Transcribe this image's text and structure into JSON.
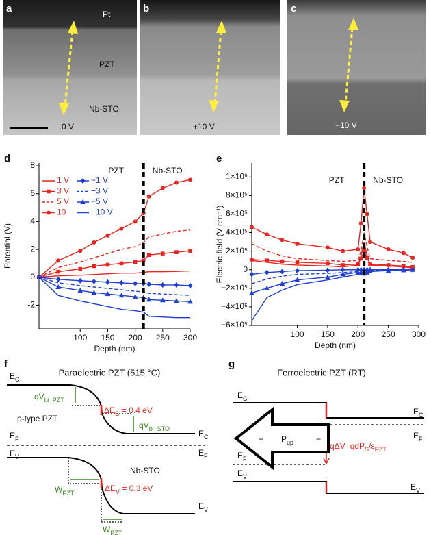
{
  "image_panels": [
    {
      "letter": "a",
      "labels": [
        "Pt",
        "PZT",
        "Nb-STO"
      ],
      "voltage": "0 V"
    },
    {
      "letter": "b",
      "voltage": "+10 V"
    },
    {
      "letter": "c",
      "voltage": "−10 V"
    }
  ],
  "chart_data": [
    {
      "type": "line",
      "letter": "d",
      "x_label": "Depth (nm)",
      "y_label": "Potential (V)",
      "annotations": [
        "PZT",
        "Nb-STO"
      ],
      "boundary": 215,
      "x": [
        25,
        60,
        100,
        125,
        150,
        175,
        200,
        215,
        225,
        250,
        275,
        300
      ],
      "xlim": [
        25,
        300
      ],
      "xticks": [
        100,
        150,
        200,
        250,
        300
      ],
      "ylim": [
        -3.7,
        8.2
      ],
      "yticks": [
        -2,
        0,
        2,
        4,
        6,
        8
      ],
      "legend": true,
      "series": [
        {
          "name": "1 V",
          "color": "#e8251f",
          "marker": "none",
          "dash": "solid",
          "values": [
            0,
            0.1,
            0.15,
            0.2,
            0.25,
            0.3,
            0.3,
            0.35,
            0.4,
            0.4,
            0.42,
            0.45
          ]
        },
        {
          "name": "3 V",
          "color": "#e8251f",
          "marker": "square",
          "dash": "solid",
          "values": [
            0,
            0.4,
            0.6,
            0.8,
            0.9,
            1.0,
            1.1,
            1.2,
            1.6,
            1.7,
            1.8,
            1.9
          ]
        },
        {
          "name": "5 V",
          "color": "#e8251f",
          "marker": "none",
          "dash": "dashed",
          "values": [
            0,
            0.7,
            1.1,
            1.4,
            1.7,
            2.0,
            2.2,
            2.5,
            2.9,
            3.1,
            3.3,
            3.4
          ]
        },
        {
          "name": "10",
          "color": "#e8251f",
          "marker": "circle",
          "dash": "solid",
          "values": [
            0,
            1.2,
            1.9,
            2.5,
            3.0,
            3.5,
            4.0,
            4.6,
            5.8,
            6.4,
            6.8,
            7.0
          ]
        },
        {
          "name": "−1 V",
          "color": "#1f3fd0",
          "marker": "diamond",
          "dash": "solid",
          "values": [
            0,
            -0.15,
            -0.25,
            -0.3,
            -0.35,
            -0.4,
            -0.45,
            -0.45,
            -0.5,
            -0.55,
            -0.55,
            -0.6
          ]
        },
        {
          "name": "−3 V",
          "color": "#1f3fd0",
          "marker": "none",
          "dash": "dashed",
          "values": [
            0,
            -0.4,
            -0.6,
            -0.7,
            -0.8,
            -0.9,
            -1.0,
            -1.05,
            -1.15,
            -1.2,
            -1.25,
            -1.3
          ]
        },
        {
          "name": "−5 V",
          "color": "#1f3fd0",
          "marker": "triangle",
          "dash": "solid",
          "values": [
            0,
            -0.7,
            -0.95,
            -1.1,
            -1.2,
            -1.3,
            -1.4,
            -1.45,
            -1.6,
            -1.65,
            -1.7,
            -1.75
          ]
        },
        {
          "name": "−10 V",
          "color": "#1f3fd0",
          "marker": "none",
          "dash": "solid",
          "values": [
            0,
            -1.3,
            -1.7,
            -1.9,
            -2.1,
            -2.3,
            -2.4,
            -2.5,
            -2.8,
            -2.85,
            -2.9,
            -2.9
          ]
        }
      ]
    },
    {
      "type": "line",
      "letter": "e",
      "x_label": "Depth (nm)",
      "y_label": "Electric field (V cm⁻¹)",
      "annotations": [
        "PZT",
        "Nb-STO"
      ],
      "boundary": 210,
      "x": [
        25,
        50,
        75,
        100,
        150,
        175,
        200,
        205,
        210,
        215,
        220,
        250,
        275,
        290
      ],
      "xlim": [
        25,
        300
      ],
      "xticks": [
        100,
        150,
        200,
        250,
        300
      ],
      "ylim": [
        -600000,
        1150000
      ],
      "yticks": [
        {
          "value": -600000,
          "label": "−6×10⁵"
        },
        {
          "value": -400000,
          "label": "−4×10⁵"
        },
        {
          "value": -200000,
          "label": "−2×10⁵"
        },
        0,
        {
          "value": 200000,
          "label": "2×10⁵"
        },
        {
          "value": 400000,
          "label": "4×10⁵"
        },
        {
          "value": 600000,
          "label": "6×10⁵"
        },
        {
          "value": 800000,
          "label": "8×10⁵"
        },
        {
          "value": 1000000,
          "label": "1×10⁶"
        }
      ],
      "legend": false,
      "series": [
        {
          "color": "#e8251f",
          "marker": "none",
          "dash": "solid",
          "values": [
            100000,
            80000,
            60000,
            50000,
            40000,
            30000,
            50000,
            150000,
            300000,
            150000,
            50000,
            40000,
            30000,
            20000
          ]
        },
        {
          "color": "#e8251f",
          "marker": "square",
          "dash": "solid",
          "values": [
            110000,
            100000,
            90000,
            80000,
            70000,
            50000,
            60000,
            120000,
            200000,
            130000,
            60000,
            50000,
            40000,
            30000
          ]
        },
        {
          "color": "#e8251f",
          "marker": "none",
          "dash": "dashed",
          "values": [
            280000,
            200000,
            150000,
            120000,
            100000,
            90000,
            100000,
            200000,
            400000,
            250000,
            120000,
            100000,
            90000,
            80000
          ]
        },
        {
          "color": "#e8251f",
          "marker": "circle",
          "dash": "solid",
          "values": [
            460000,
            380000,
            320000,
            280000,
            240000,
            200000,
            220000,
            500000,
            880000,
            600000,
            300000,
            220000,
            180000,
            130000
          ]
        },
        {
          "color": "#1f3fd0",
          "marker": "diamond",
          "dash": "solid",
          "values": [
            -50000,
            -30000,
            -20000,
            -10000,
            -5000,
            0,
            0,
            0,
            0,
            0,
            0,
            0,
            0,
            0
          ]
        },
        {
          "color": "#1f3fd0",
          "marker": "none",
          "dash": "dashed",
          "values": [
            -150000,
            -100000,
            -70000,
            -50000,
            -40000,
            -30000,
            -20000,
            -20000,
            -30000,
            -20000,
            -10000,
            -5000,
            0,
            0
          ]
        },
        {
          "color": "#1f3fd0",
          "marker": "triangle",
          "dash": "solid",
          "values": [
            -250000,
            -200000,
            -150000,
            -110000,
            -80000,
            -50000,
            -30000,
            -30000,
            -40000,
            -30000,
            -15000,
            -10000,
            -5000,
            0
          ]
        },
        {
          "color": "#1f3fd0",
          "marker": "none",
          "dash": "solid",
          "values": [
            -550000,
            -300000,
            -220000,
            -160000,
            -110000,
            -80000,
            -50000,
            -50000,
            -60000,
            -40000,
            -20000,
            -10000,
            -5000,
            0
          ]
        }
      ]
    }
  ],
  "diagram_f": {
    "letter": "f",
    "title": "Paraelectric PZT (515 °C)",
    "labels": {
      "ec_left": [
        "E",
        "C"
      ],
      "qvbi_pzt": [
        "qV",
        "bi_PZT"
      ],
      "delta_ec": [
        "ΔE",
        "C",
        " = 0.4 eV"
      ],
      "ptype": [
        "p-type PZT"
      ],
      "ef_left": [
        "E",
        "F"
      ],
      "qvbi_sto": [
        "qV",
        "bi_STO"
      ],
      "ec_right": [
        "E",
        "C"
      ],
      "ef_right": [
        "E",
        "F"
      ],
      "ev_left": [
        "E",
        "V"
      ],
      "nbsto": [
        "Nb-STO"
      ],
      "w_pzt_top": [
        "W",
        "PZT"
      ],
      "delta_ev": [
        "ΔE",
        "V",
        " = 0.3 eV"
      ],
      "ev_right": [
        "E",
        "V"
      ],
      "w_pzt_bottom": [
        "W",
        "PZT"
      ]
    }
  },
  "diagram_g": {
    "letter": "g",
    "title": "Ferroelectric PZT (RT)",
    "labels": {
      "ec_left": [
        "E",
        "C"
      ],
      "ec_right": [
        "E",
        "C"
      ],
      "plus": [
        "+"
      ],
      "pup": [
        "P",
        "up"
      ],
      "minus": [
        "−"
      ],
      "ef_right": [
        "E",
        "F"
      ],
      "ef_left": [
        "E",
        "F"
      ],
      "dv": [
        "qΔV=qdP",
        "S",
        "/ε",
        "PZT"
      ],
      "ev_left": [
        "E",
        "V"
      ],
      "ev_right": [
        "E",
        "V"
      ]
    }
  }
}
